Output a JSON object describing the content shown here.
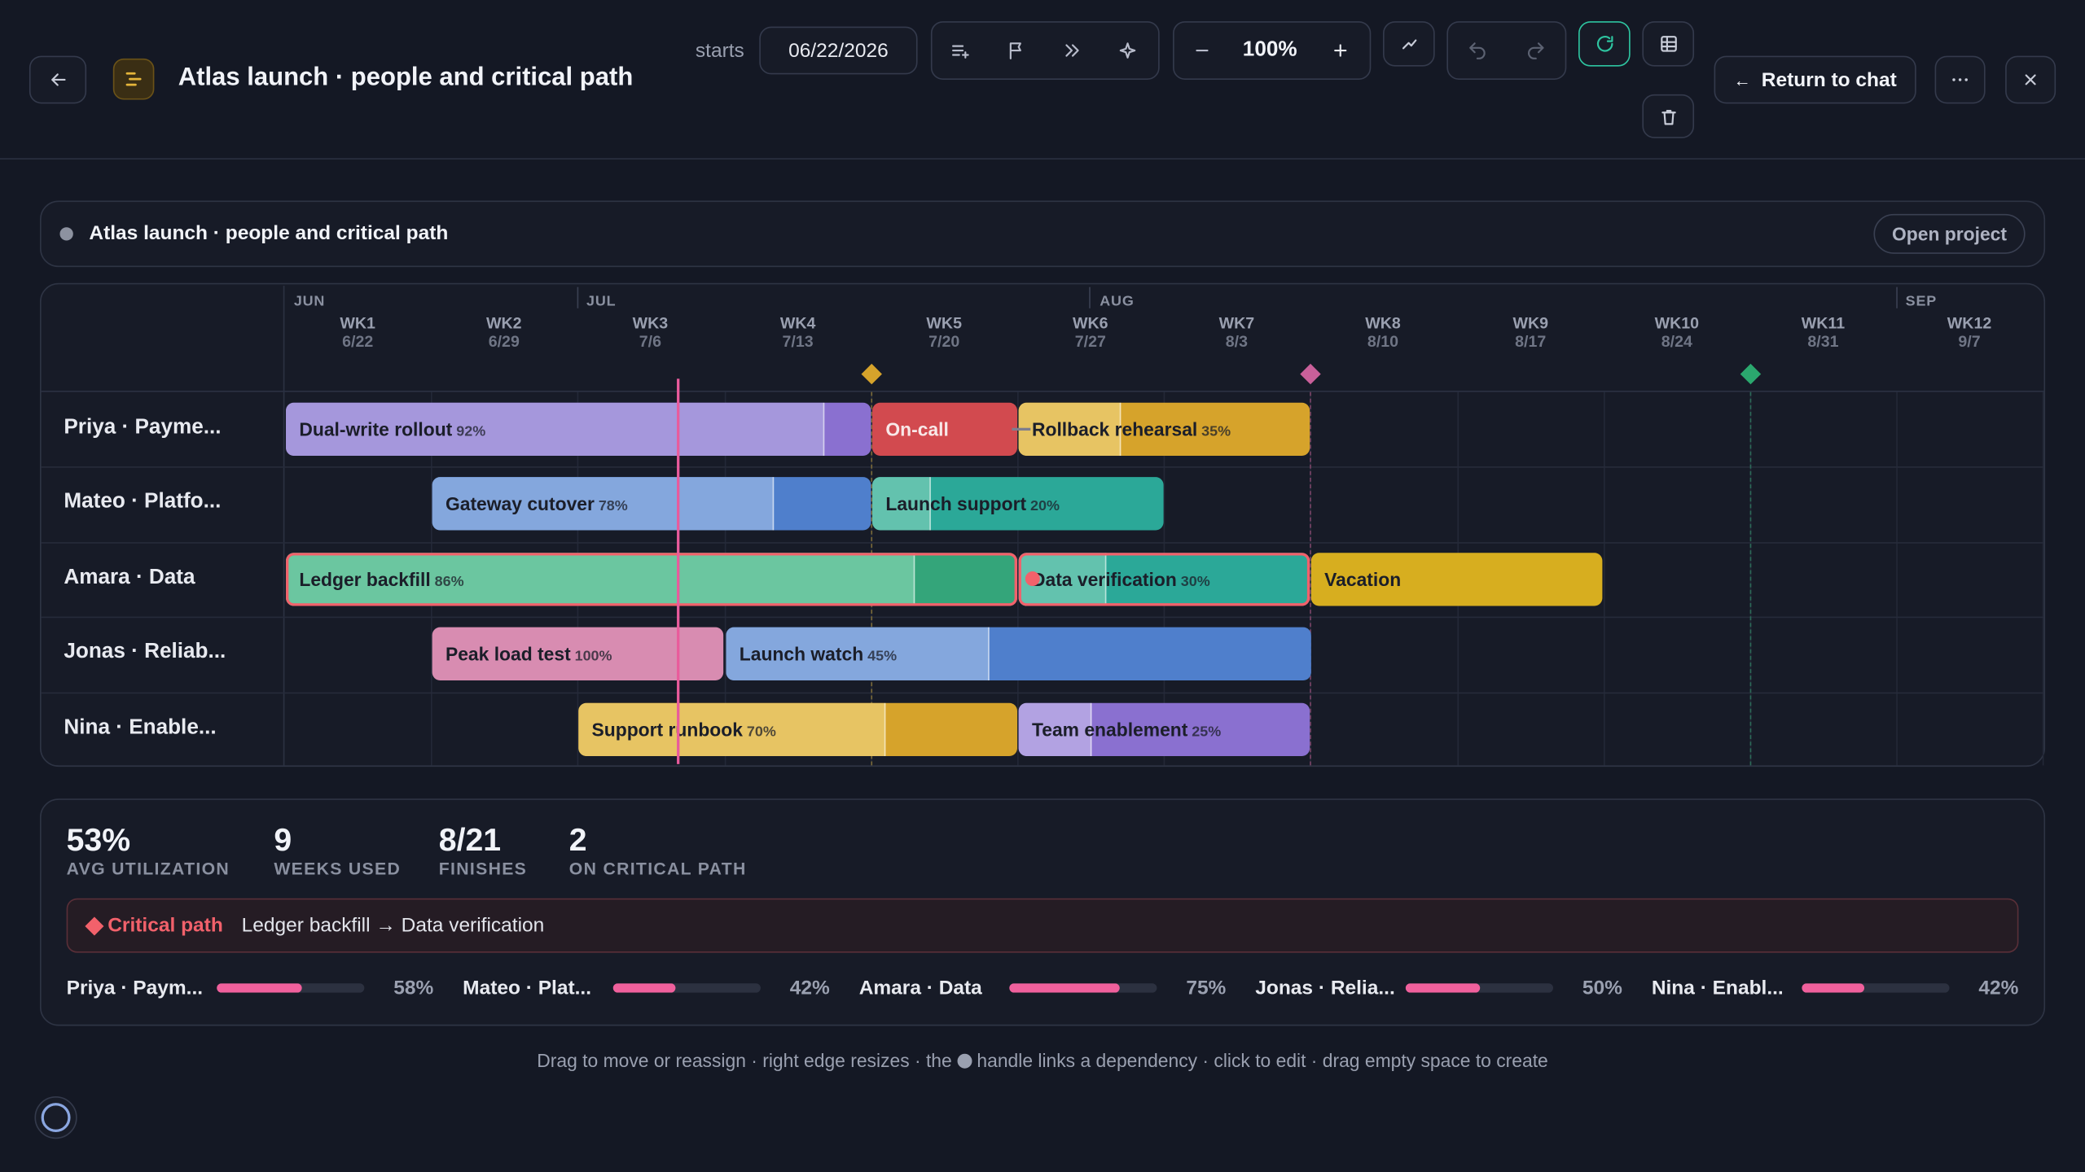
{
  "header": {
    "title": "Atlas launch · people and critical path",
    "starts_label": "starts",
    "start_date": "06/22/2026",
    "zoom": "100%",
    "return_label": "Return to chat"
  },
  "project": {
    "name": "Atlas launch · people and critical path",
    "open_label": "Open project"
  },
  "timeline": {
    "months": [
      "JUN",
      "JUL",
      "AUG",
      "SEP"
    ],
    "weeks": [
      {
        "label": "WK1",
        "date": "6/22"
      },
      {
        "label": "WK2",
        "date": "6/29"
      },
      {
        "label": "WK3",
        "date": "7/6"
      },
      {
        "label": "WK4",
        "date": "7/13"
      },
      {
        "label": "WK5",
        "date": "7/20"
      },
      {
        "label": "WK6",
        "date": "7/27"
      },
      {
        "label": "WK7",
        "date": "8/3"
      },
      {
        "label": "WK8",
        "date": "8/10"
      },
      {
        "label": "WK9",
        "date": "8/17"
      },
      {
        "label": "WK10",
        "date": "8/24"
      },
      {
        "label": "WK11",
        "date": "8/31"
      },
      {
        "label": "WK12",
        "date": "9/7"
      }
    ]
  },
  "rows": [
    {
      "name": "Priya · Payme...",
      "tasks": [
        {
          "name": "Dual-write rollout",
          "pct": "92%",
          "progress": 0.92,
          "color": "#a597dc",
          "dark": "#8a70d0"
        },
        {
          "name": "On-call",
          "pct": "",
          "progress": 0,
          "color": "#d24a4f",
          "dark": "#d24a4f"
        },
        {
          "name": "Rollback rehearsal",
          "pct": "35%",
          "progress": 0.35,
          "color": "#e7c463",
          "dark": "#d6a32b"
        }
      ]
    },
    {
      "name": "Mateo · Platfo...",
      "tasks": [
        {
          "name": "Gateway cutover",
          "pct": "78%",
          "progress": 0.78,
          "color": "#84a7dd",
          "dark": "#4f7fcc"
        },
        {
          "name": "Launch support",
          "pct": "20%",
          "progress": 0.2,
          "color": "#63c2ae",
          "dark": "#2ba898"
        }
      ]
    },
    {
      "name": "Amara · Data",
      "tasks": [
        {
          "name": "Ledger backfill",
          "pct": "86%",
          "progress": 0.86,
          "color": "#6bc6a0",
          "dark": "#34a57a"
        },
        {
          "name": "Data verification",
          "pct": "30%",
          "progress": 0.3,
          "color": "#63c2ae",
          "dark": "#2ba898"
        },
        {
          "name": "Vacation",
          "pct": "",
          "progress": 0,
          "color": "#d7ae1f",
          "dark": "#d7ae1f"
        }
      ]
    },
    {
      "name": "Jonas · Reliab...",
      "tasks": [
        {
          "name": "Peak load test",
          "pct": "100%",
          "progress": 1.0,
          "color": "#d88cb1",
          "dark": "#d88cb1"
        },
        {
          "name": "Launch watch",
          "pct": "45%",
          "progress": 0.45,
          "color": "#84a7dd",
          "dark": "#4f7fcc"
        }
      ]
    },
    {
      "name": "Nina · Enable...",
      "tasks": [
        {
          "name": "Support runbook",
          "pct": "70%",
          "progress": 0.7,
          "color": "#e7c463",
          "dark": "#d6a32b"
        },
        {
          "name": "Team enablement",
          "pct": "25%",
          "progress": 0.25,
          "color": "#b2a2e2",
          "dark": "#8a70d0"
        }
      ]
    }
  ],
  "stats": [
    {
      "value": "53%",
      "label": "AVG UTILIZATION"
    },
    {
      "value": "9",
      "label": "WEEKS USED"
    },
    {
      "value": "8/21",
      "label": "FINISHES"
    },
    {
      "value": "2",
      "label": "ON CRITICAL PATH"
    }
  ],
  "critical": {
    "title": "Critical path",
    "path": "Ledger backfill → Data verification"
  },
  "utilization": [
    {
      "name": "Priya · Paym...",
      "pct": "58%",
      "value": 0.58
    },
    {
      "name": "Mateo · Plat...",
      "pct": "42%",
      "value": 0.42
    },
    {
      "name": "Amara · Data",
      "pct": "75%",
      "value": 0.75
    },
    {
      "name": "Jonas · Relia...",
      "pct": "50%",
      "value": 0.5
    },
    {
      "name": "Nina · Enabl...",
      "pct": "42%",
      "value": 0.42
    }
  ],
  "hint": {
    "before": "Drag to move or reassign · right edge resizes · the",
    "after": "handle links a dependency · click to edit · drag empty space to create"
  },
  "colors": {
    "accent": "#2ec4a0",
    "critical": "#f2616b",
    "today": "#e95b9c",
    "util": "#f0609c"
  }
}
